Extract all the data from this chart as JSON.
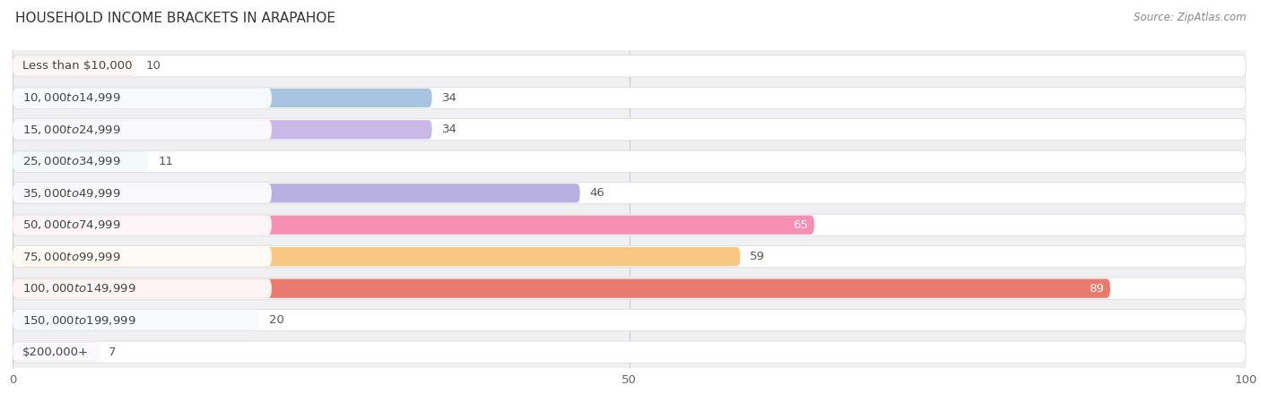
{
  "title": "HOUSEHOLD INCOME BRACKETS IN ARAPAHOE",
  "source": "Source: ZipAtlas.com",
  "categories": [
    "Less than $10,000",
    "$10,000 to $14,999",
    "$15,000 to $24,999",
    "$25,000 to $34,999",
    "$35,000 to $49,999",
    "$50,000 to $74,999",
    "$75,000 to $99,999",
    "$100,000 to $149,999",
    "$150,000 to $199,999",
    "$200,000+"
  ],
  "values": [
    10,
    34,
    34,
    11,
    46,
    65,
    59,
    89,
    20,
    7
  ],
  "bar_colors": [
    "#f4a9a8",
    "#a8c4e0",
    "#c9b8e8",
    "#82cec9",
    "#b8b0e0",
    "#f78fb3",
    "#f9c784",
    "#e87b6e",
    "#a8c4e0",
    "#d4b8e0"
  ],
  "value_inside": [
    false,
    false,
    false,
    false,
    false,
    true,
    false,
    true,
    false,
    false
  ],
  "xlim": [
    0,
    100
  ],
  "background_color": "#f0f0f0",
  "row_bg_color": "#efefef",
  "title_fontsize": 11,
  "label_fontsize": 9.5,
  "value_fontsize": 9.5
}
